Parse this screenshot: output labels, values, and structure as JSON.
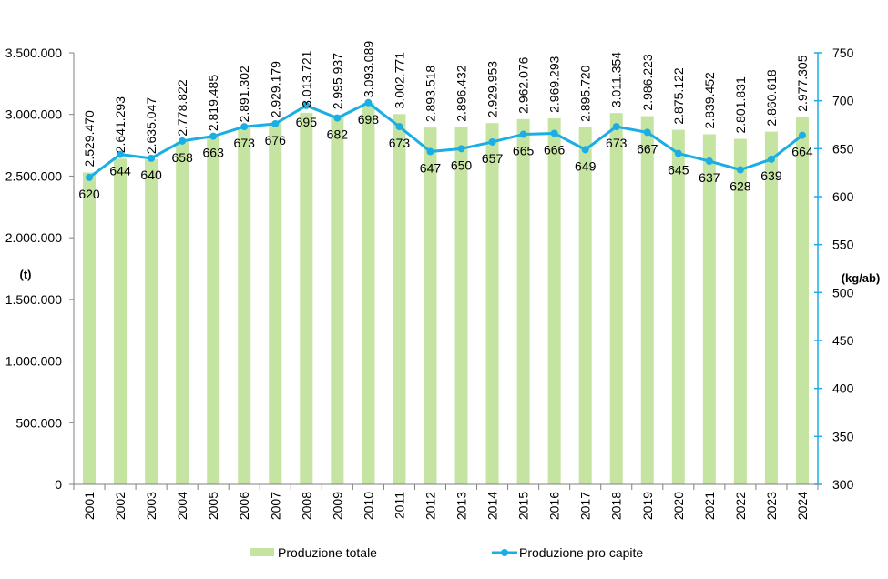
{
  "chart_data": {
    "type": "bar+line",
    "title": "",
    "categories": [
      "2001",
      "2002",
      "2003",
      "2004",
      "2005",
      "2006",
      "2007",
      "2008",
      "2009",
      "2010",
      "2011",
      "2012",
      "2013",
      "2014",
      "2015",
      "2016",
      "2017",
      "2018",
      "2019",
      "2020",
      "2021",
      "2022",
      "2023",
      "2024"
    ],
    "series": [
      {
        "name": "Produzione totale",
        "type": "bar",
        "axis": "left",
        "color": "#c5e3a1",
        "values": [
          2529470,
          2641293,
          2635047,
          2778822,
          2819485,
          2891302,
          2929179,
          3013721,
          2995937,
          3093089,
          3002771,
          2893518,
          2896432,
          2929953,
          2962076,
          2969293,
          2895720,
          3011354,
          2986223,
          2875122,
          2839452,
          2801831,
          2860618,
          2977305
        ],
        "labels": [
          "2.529.470",
          "2.641.293",
          "2.635.047",
          "2.778.822",
          "2.819.485",
          "2.891.302",
          "2.929.179",
          "3.013.721",
          "2.995.937",
          "3.093.089",
          "3.002.771",
          "2.893.518",
          "2.896.432",
          "2.929.953",
          "2.962.076",
          "2.969.293",
          "2.895.720",
          "3.011.354",
          "2.986.223",
          "2.875.122",
          "2.839.452",
          "2.801.831",
          "2.860.618",
          "2.977.305"
        ]
      },
      {
        "name": "Produzione pro capite",
        "type": "line",
        "axis": "right",
        "color": "#1aaee5",
        "values": [
          620,
          644,
          640,
          658,
          663,
          673,
          676,
          695,
          682,
          698,
          673,
          647,
          650,
          657,
          665,
          666,
          649,
          673,
          667,
          645,
          637,
          628,
          639,
          664
        ]
      }
    ],
    "left_axis": {
      "label": "(t)",
      "ylim": [
        0,
        3500000
      ],
      "ticks": [
        0,
        500000,
        1000000,
        1500000,
        2000000,
        2500000,
        3000000,
        3500000
      ],
      "tick_labels": [
        "0",
        "500.000",
        "1.000.000",
        "1.500.000",
        "2.000.000",
        "2.500.000",
        "3.000.000",
        "3.500.000"
      ]
    },
    "right_axis": {
      "label": "(kg/ab)",
      "ylim": [
        300,
        750
      ],
      "ticks": [
        300,
        350,
        400,
        450,
        500,
        550,
        600,
        650,
        700,
        750
      ],
      "tick_labels": [
        "300",
        "350",
        "400",
        "450",
        "500",
        "550",
        "600",
        "650",
        "700",
        "750"
      ],
      "color": "#1aaee5"
    },
    "grid": false,
    "legend": {
      "position": "bottom",
      "entries": [
        "Produzione totale",
        "Produzione pro capite"
      ]
    }
  }
}
